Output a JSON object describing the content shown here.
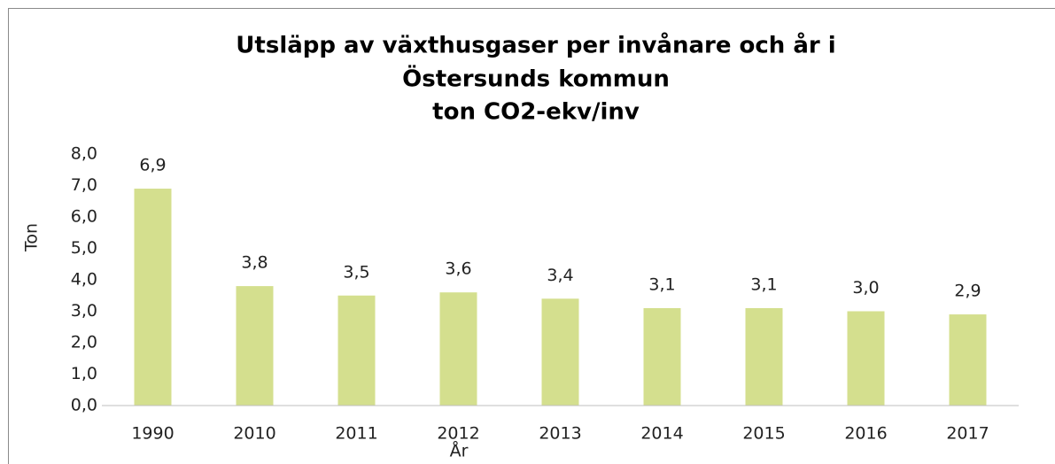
{
  "chart_data": {
    "type": "bar",
    "title": [
      "Utsläpp av växthusgaser per invånare och år i",
      "Östersunds kommun",
      "ton CO2-ekv/inv"
    ],
    "x_label": "År",
    "y_label": "Ton",
    "categories": [
      "1990",
      "2010",
      "2011",
      "2012",
      "2013",
      "2014",
      "2015",
      "2016",
      "2017"
    ],
    "values": [
      6.9,
      3.8,
      3.5,
      3.6,
      3.4,
      3.1,
      3.1,
      3.0,
      2.9
    ],
    "value_labels": [
      "6,9",
      "3,8",
      "3,5",
      "3,6",
      "3,4",
      "3,1",
      "3,1",
      "3,0",
      "2,9"
    ],
    "color": "#d4df8e",
    "ylim": [
      0,
      8
    ],
    "yticks": [
      {
        "value": 0,
        "label": "0,0"
      },
      {
        "value": 1,
        "label": "1,0"
      },
      {
        "value": 2,
        "label": "2,0"
      },
      {
        "value": 3,
        "label": "3,0"
      },
      {
        "value": 4,
        "label": "4,0"
      },
      {
        "value": 5,
        "label": "5,0"
      },
      {
        "value": 6,
        "label": "6,0"
      },
      {
        "value": 7,
        "label": "7,0"
      },
      {
        "value": 8,
        "label": "8,0"
      }
    ],
    "grid": false
  }
}
